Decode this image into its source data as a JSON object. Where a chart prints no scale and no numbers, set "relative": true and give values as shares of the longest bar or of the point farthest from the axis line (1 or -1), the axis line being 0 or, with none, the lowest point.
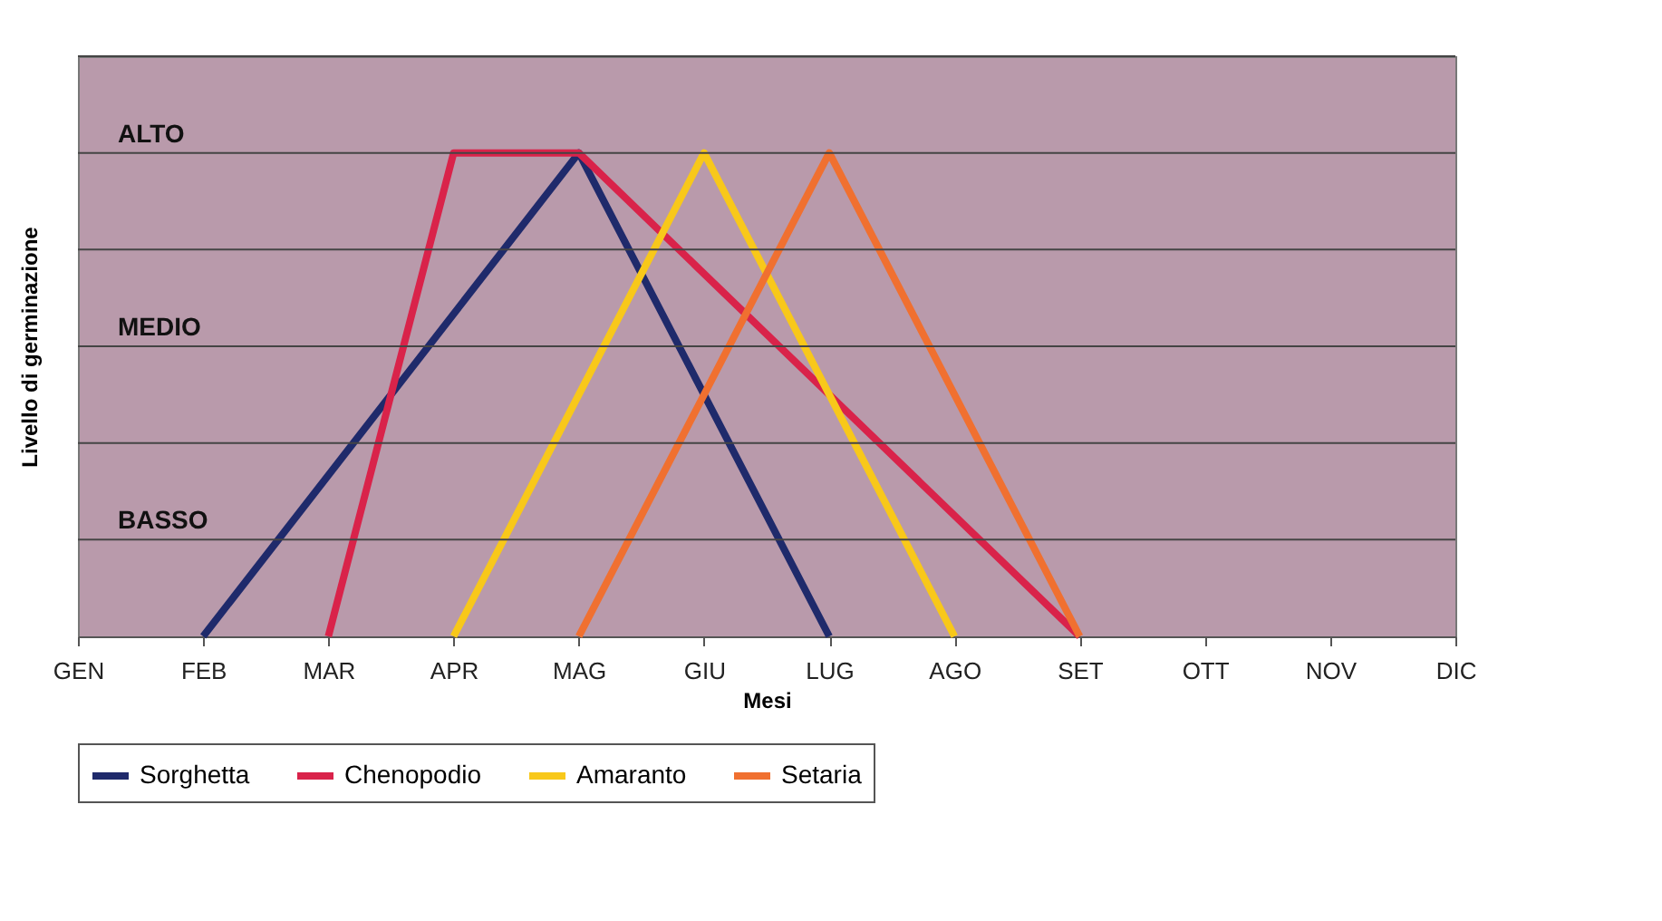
{
  "chart_data": {
    "type": "line",
    "relative": true,
    "xlabel": "Mesi",
    "ylabel": "Livello di germinazione",
    "categories": [
      "GEN",
      "FEB",
      "MAR",
      "APR",
      "MAG",
      "GIU",
      "LUG",
      "AGO",
      "SET",
      "OTT",
      "NOV",
      "DIC"
    ],
    "series": [
      {
        "name": "Sorghetta",
        "color": "#1f2a6b",
        "values": [
          null,
          0,
          null,
          null,
          1,
          null,
          0,
          null,
          null,
          null,
          null,
          null
        ]
      },
      {
        "name": "Chenopodio",
        "color": "#d9234a",
        "values": [
          null,
          null,
          0,
          1,
          1,
          null,
          null,
          null,
          0,
          null,
          null,
          null
        ]
      },
      {
        "name": "Amaranto",
        "color": "#f8c81a",
        "values": [
          null,
          null,
          null,
          0,
          null,
          1,
          null,
          0,
          null,
          null,
          null,
          null
        ]
      },
      {
        "name": "Setaria",
        "color": "#f07030",
        "values": [
          null,
          null,
          null,
          null,
          0,
          null,
          1,
          null,
          0,
          null,
          null,
          null
        ]
      }
    ],
    "ref_lines": [
      {
        "axis": "y",
        "value": 0.2,
        "label": "BASSO",
        "color": "#444444"
      },
      {
        "axis": "y",
        "value": 0.4,
        "label": null,
        "color": "#444444"
      },
      {
        "axis": "y",
        "value": 0.6,
        "label": "MEDIO",
        "color": "#444444"
      },
      {
        "axis": "y",
        "value": 0.8,
        "label": null,
        "color": "#444444"
      },
      {
        "axis": "y",
        "value": 1.0,
        "label": "ALTO",
        "color": "#444444"
      },
      {
        "axis": "y",
        "value": 1.2,
        "label": null,
        "color": "#444444"
      }
    ],
    "legend": "bottom",
    "marker": "none",
    "line_style": "solid"
  }
}
